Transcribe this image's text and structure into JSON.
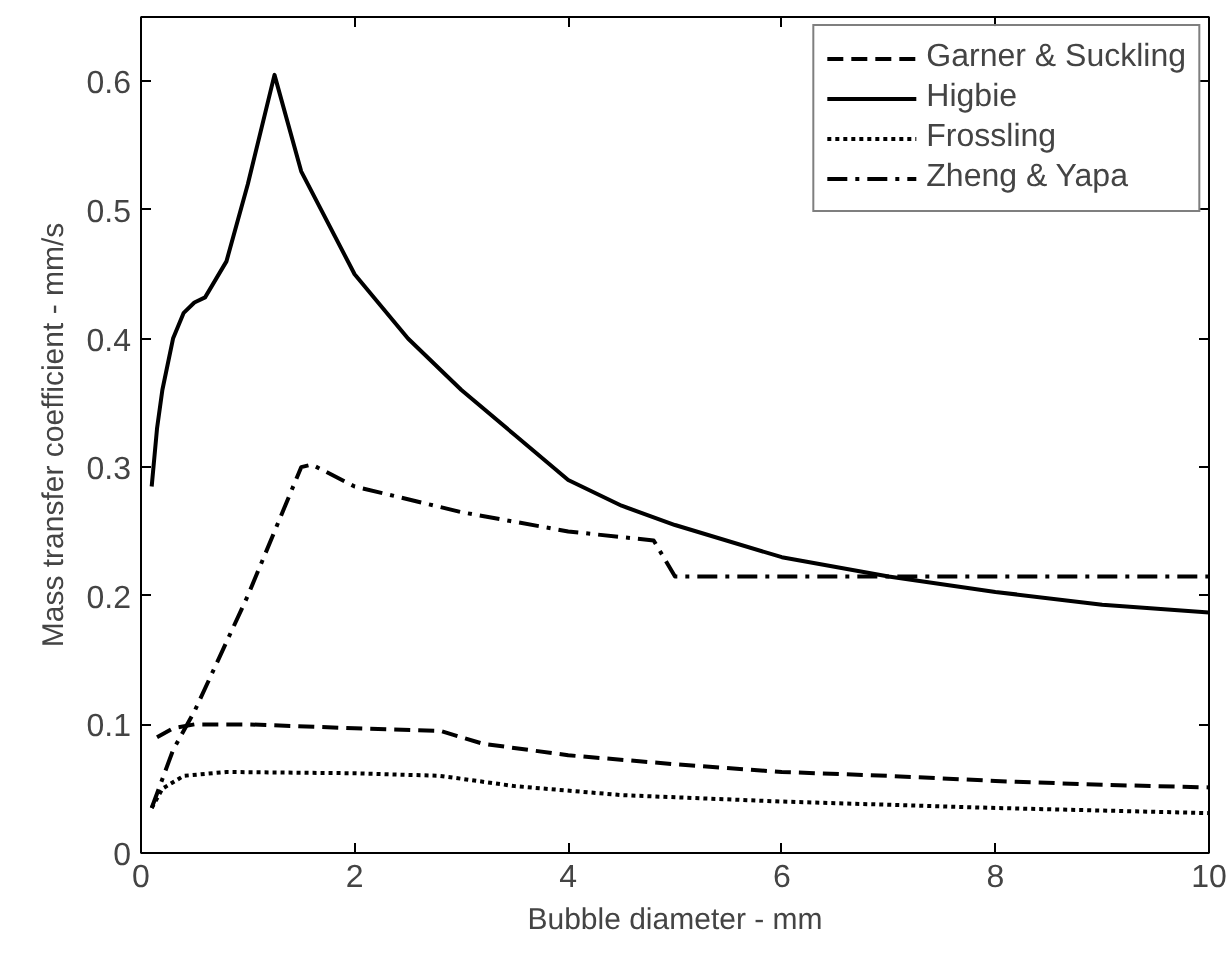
{
  "chart_data": {
    "type": "line",
    "xlabel": "Bubble diameter - mm",
    "ylabel": "Mass transfer coefficient - mm/s",
    "xlim": [
      0,
      10
    ],
    "ylim": [
      0,
      0.65
    ],
    "xticks": [
      0,
      2,
      4,
      6,
      8,
      10
    ],
    "yticks": [
      0,
      0.1,
      0.2,
      0.3,
      0.4,
      0.5,
      0.6
    ],
    "grid": false,
    "legend": "top right",
    "marker": "none",
    "series": [
      {
        "name": "Garner & Suckling",
        "color": "#000000",
        "line_style": "dashed",
        "x": [
          0.15,
          0.3,
          0.5,
          1,
          2,
          2.8,
          3.2,
          4,
          5,
          6,
          7,
          8,
          9,
          10
        ],
        "values": [
          0.09,
          0.097,
          0.1,
          0.1,
          0.097,
          0.095,
          0.085,
          0.076,
          0.069,
          0.063,
          0.06,
          0.056,
          0.053,
          0.051
        ]
      },
      {
        "name": "Higbie",
        "color": "#000000",
        "line_style": "solid",
        "x": [
          0.1,
          0.15,
          0.2,
          0.3,
          0.4,
          0.5,
          0.6,
          0.8,
          1.0,
          1.25,
          1.5,
          2,
          2.5,
          3,
          3.5,
          4,
          4.5,
          5,
          6,
          7,
          8,
          9,
          10
        ],
        "values": [
          0.285,
          0.33,
          0.36,
          0.4,
          0.42,
          0.428,
          0.432,
          0.46,
          0.52,
          0.605,
          0.53,
          0.45,
          0.4,
          0.36,
          0.325,
          0.29,
          0.27,
          0.255,
          0.23,
          0.215,
          0.203,
          0.193,
          0.187
        ]
      },
      {
        "name": "Frossling",
        "color": "#000000",
        "line_style": "dotted",
        "x": [
          0.1,
          0.2,
          0.4,
          0.8,
          2,
          2.8,
          3.5,
          4.5,
          6,
          8,
          10
        ],
        "values": [
          0.035,
          0.05,
          0.06,
          0.063,
          0.062,
          0.06,
          0.052,
          0.045,
          0.04,
          0.035,
          0.031
        ]
      },
      {
        "name": "Zheng & Yapa",
        "color": "#000000",
        "line_style": "dashdot",
        "x": [
          0.1,
          0.3,
          0.5,
          1.0,
          1.5,
          1.6,
          2,
          3,
          4,
          4.8,
          5.0,
          10
        ],
        "values": [
          0.035,
          0.08,
          0.11,
          0.2,
          0.3,
          0.302,
          0.285,
          0.265,
          0.25,
          0.243,
          0.215,
          0.215
        ]
      }
    ]
  }
}
